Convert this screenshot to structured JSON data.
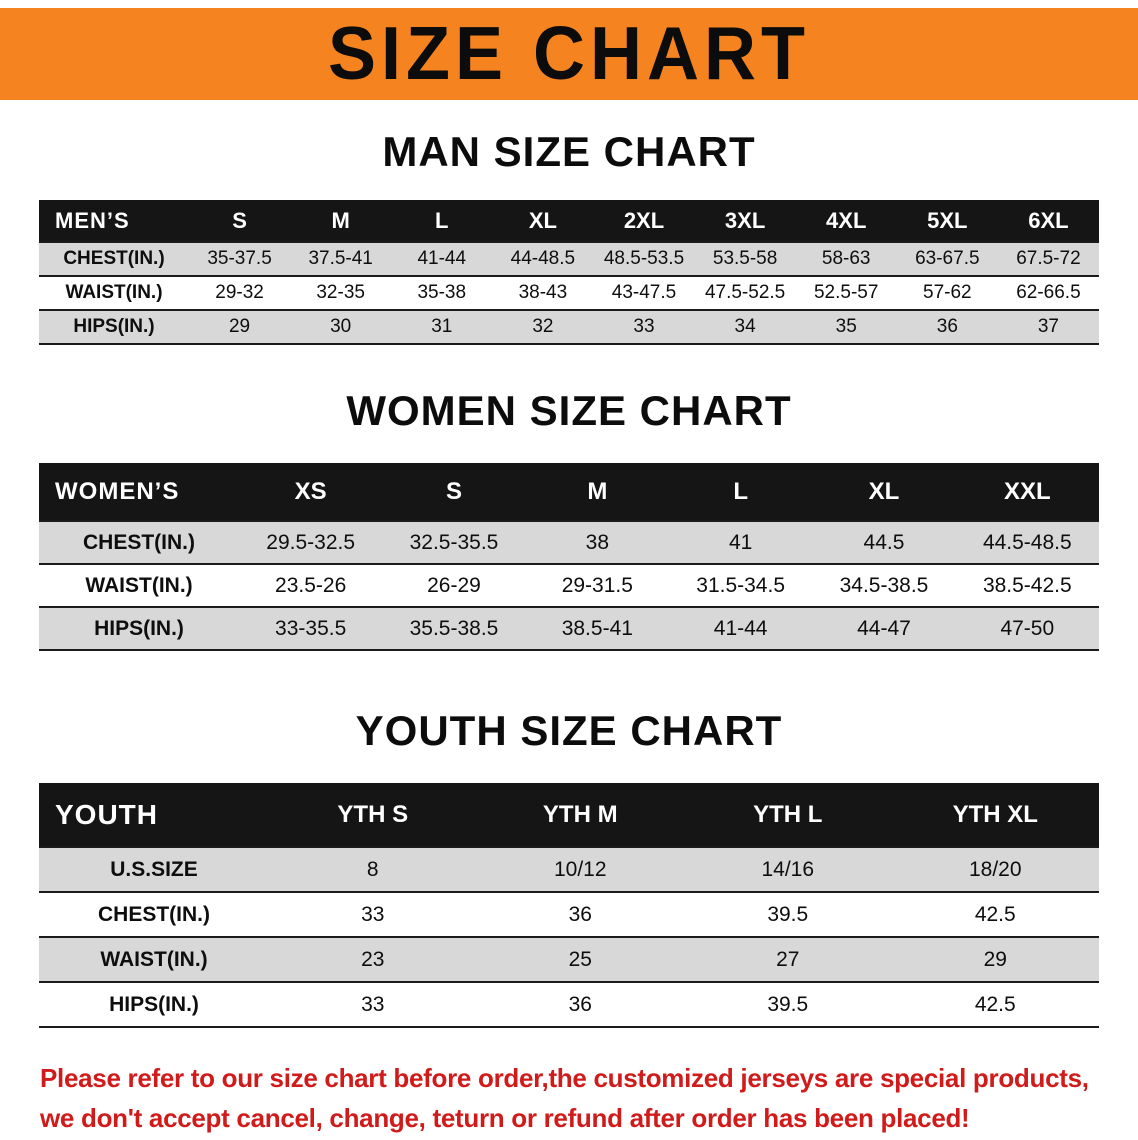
{
  "banner": {
    "title": "SIZE CHART"
  },
  "colors": {
    "banner_bg": "#f5831f",
    "table_header_bg": "#151515",
    "row_alt_gray": "#d8d8d8",
    "note_red": "#d11a1a"
  },
  "sections": [
    {
      "heading": "MAN SIZE CHART",
      "table": {
        "header": [
          "MEN’S",
          "S",
          "M",
          "L",
          "XL",
          "2XL",
          "3XL",
          "4XL",
          "5XL",
          "6XL"
        ],
        "rows": [
          [
            "CHEST(IN.)",
            "35-37.5",
            "37.5-41",
            "41-44",
            "44-48.5",
            "48.5-53.5",
            "53.5-58",
            "58-63",
            "63-67.5",
            "67.5-72"
          ],
          [
            "WAIST(IN.)",
            "29-32",
            "32-35",
            "35-38",
            "38-43",
            "43-47.5",
            "47.5-52.5",
            "52.5-57",
            "57-62",
            "62-66.5"
          ],
          [
            "HIPS(IN.)",
            "29",
            "30",
            "31",
            "32",
            "33",
            "34",
            "35",
            "36",
            "37"
          ]
        ]
      }
    },
    {
      "heading": "WOMEN SIZE CHART",
      "table": {
        "header": [
          "WOMEN’S",
          "XS",
          "S",
          "M",
          "L",
          "XL",
          "XXL"
        ],
        "rows": [
          [
            "CHEST(IN.)",
            "29.5-32.5",
            "32.5-35.5",
            "38",
            "41",
            "44.5",
            "44.5-48.5"
          ],
          [
            "WAIST(IN.)",
            "23.5-26",
            "26-29",
            "29-31.5",
            "31.5-34.5",
            "34.5-38.5",
            "38.5-42.5"
          ],
          [
            "HIPS(IN.)",
            "33-35.5",
            "35.5-38.5",
            "38.5-41",
            "41-44",
            "44-47",
            "47-50"
          ]
        ]
      }
    },
    {
      "heading": "YOUTH SIZE CHART",
      "table": {
        "header": [
          "YOUTH",
          "YTH S",
          "YTH M",
          "YTH L",
          "YTH XL"
        ],
        "rows": [
          [
            "U.S.SIZE",
            "8",
            "10/12",
            "14/16",
            "18/20"
          ],
          [
            "CHEST(IN.)",
            "33",
            "36",
            "39.5",
            "42.5"
          ],
          [
            "WAIST(IN.)",
            "23",
            "25",
            "27",
            "29"
          ],
          [
            "HIPS(IN.)",
            "33",
            "36",
            "39.5",
            "42.5"
          ]
        ]
      }
    }
  ],
  "note": {
    "line1": "Please refer to our size chart before order,the customized jerseys are special products,",
    "line2": "we don't accept cancel, change, teturn or refund after order has been placed!"
  }
}
